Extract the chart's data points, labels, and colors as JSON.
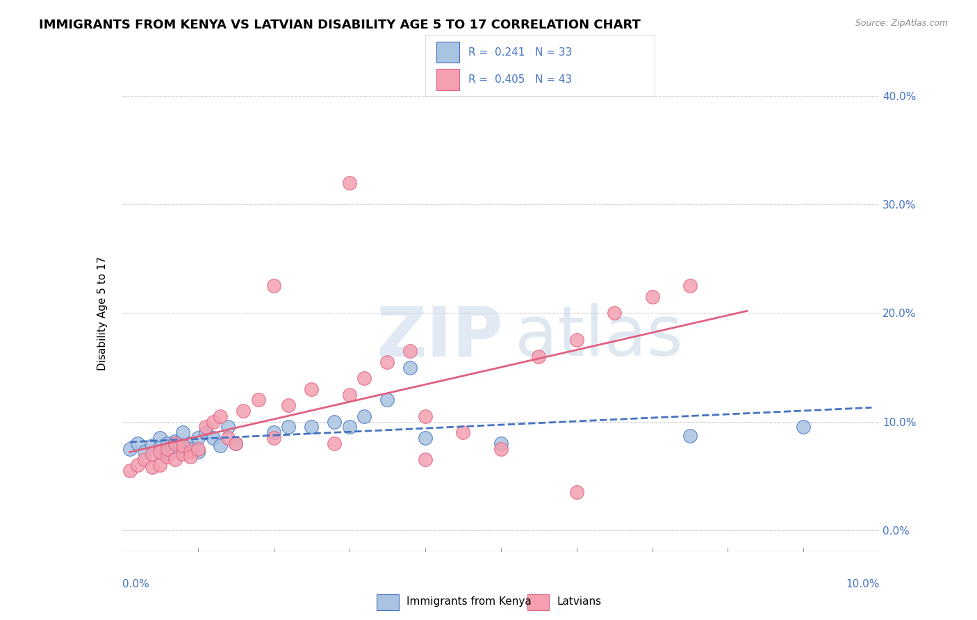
{
  "title": "IMMIGRANTS FROM KENYA VS LATVIAN DISABILITY AGE 5 TO 17 CORRELATION CHART",
  "source": "Source: ZipAtlas.com",
  "ylabel": "Disability Age 5 to 17",
  "yaxis_values": [
    0.0,
    0.1,
    0.2,
    0.3,
    0.4
  ],
  "xlim": [
    0.0,
    0.1
  ],
  "ylim": [
    -0.02,
    0.42
  ],
  "legend_blue_label": "R =  0.241   N = 33",
  "legend_pink_label": "R =  0.405   N = 43",
  "legend_bottom_blue": "Immigrants from Kenya",
  "legend_bottom_pink": "Latvians",
  "blue_color": "#a8c4e0",
  "pink_color": "#f4a0b0",
  "line_blue": "#4472c4",
  "line_pink": "#e06080",
  "text_blue": "#4472c4",
  "kenya_x": [
    0.001,
    0.002,
    0.003,
    0.004,
    0.005,
    0.005,
    0.006,
    0.006,
    0.007,
    0.007,
    0.008,
    0.008,
    0.009,
    0.009,
    0.01,
    0.01,
    0.011,
    0.012,
    0.013,
    0.014,
    0.015,
    0.02,
    0.022,
    0.025,
    0.028,
    0.03,
    0.032,
    0.035,
    0.038,
    0.04,
    0.05,
    0.075,
    0.09
  ],
  "kenya_y": [
    0.075,
    0.08,
    0.072,
    0.078,
    0.085,
    0.076,
    0.08,
    0.07,
    0.082,
    0.078,
    0.076,
    0.09,
    0.08,
    0.075,
    0.085,
    0.072,
    0.09,
    0.085,
    0.078,
    0.095,
    0.08,
    0.09,
    0.095,
    0.095,
    0.1,
    0.095,
    0.105,
    0.12,
    0.15,
    0.085,
    0.08,
    0.087,
    0.095
  ],
  "latvian_x": [
    0.001,
    0.002,
    0.003,
    0.004,
    0.004,
    0.005,
    0.005,
    0.006,
    0.006,
    0.007,
    0.007,
    0.008,
    0.008,
    0.009,
    0.009,
    0.01,
    0.011,
    0.012,
    0.013,
    0.014,
    0.015,
    0.016,
    0.018,
    0.02,
    0.022,
    0.025,
    0.028,
    0.03,
    0.032,
    0.035,
    0.038,
    0.04,
    0.045,
    0.05,
    0.055,
    0.06,
    0.065,
    0.07,
    0.075,
    0.03,
    0.02,
    0.04,
    0.06
  ],
  "latvian_y": [
    0.055,
    0.06,
    0.065,
    0.058,
    0.07,
    0.06,
    0.072,
    0.068,
    0.075,
    0.065,
    0.08,
    0.07,
    0.078,
    0.072,
    0.068,
    0.075,
    0.095,
    0.1,
    0.105,
    0.085,
    0.08,
    0.11,
    0.12,
    0.085,
    0.115,
    0.13,
    0.08,
    0.125,
    0.14,
    0.155,
    0.165,
    0.105,
    0.09,
    0.075,
    0.16,
    0.175,
    0.2,
    0.215,
    0.225,
    0.32,
    0.225,
    0.065,
    0.035
  ]
}
